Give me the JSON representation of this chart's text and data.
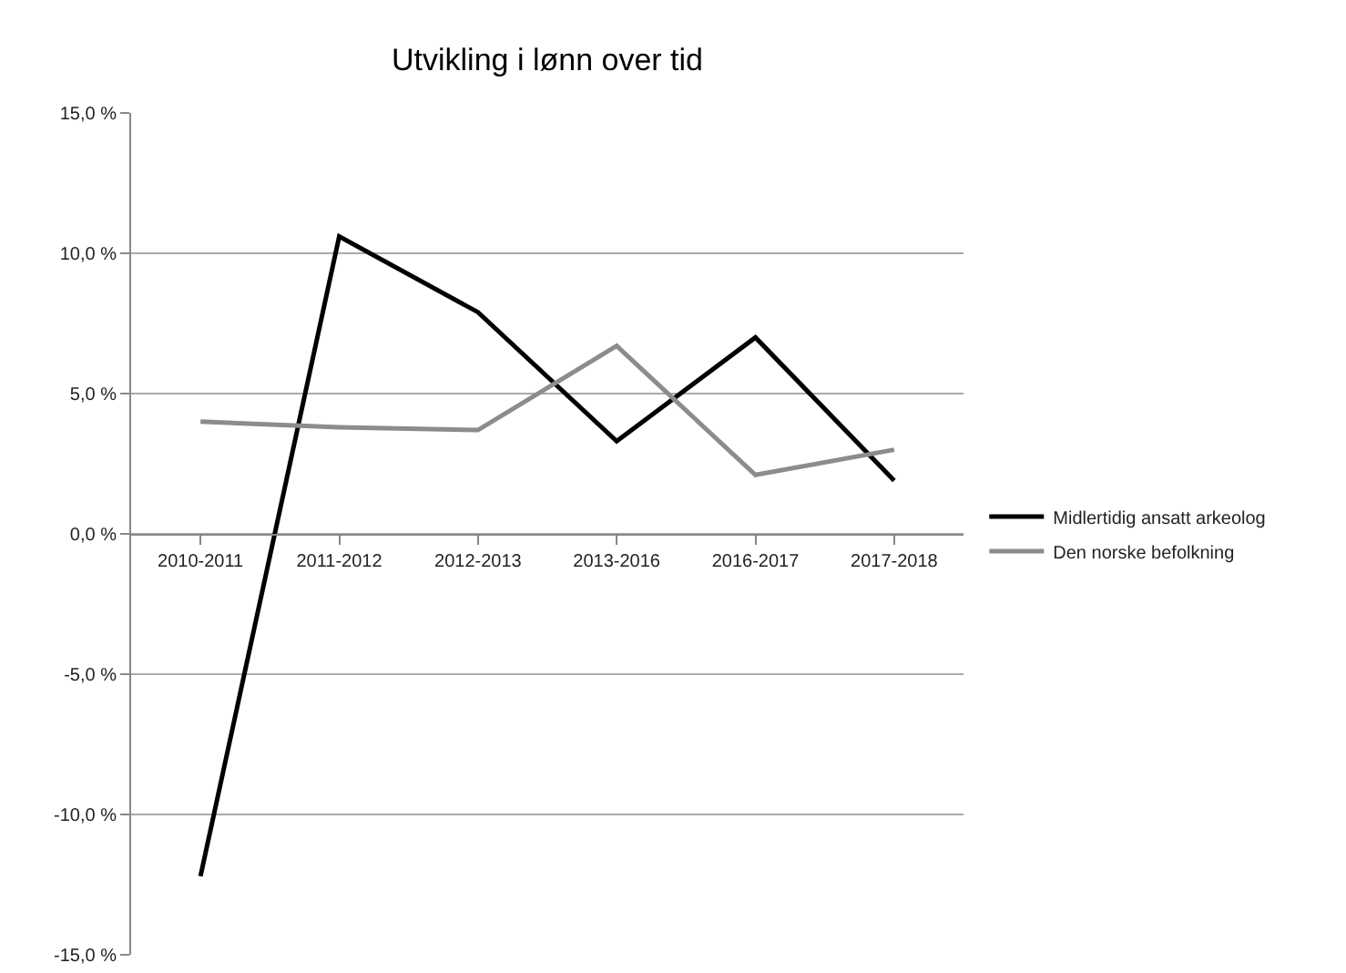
{
  "chart_data": {
    "type": "line",
    "title": "Utvikling i lønn over tid",
    "categories": [
      "2010-2011",
      "2011-2012",
      "2012-2013",
      "2013-2016",
      "2016-2017",
      "2017-2018"
    ],
    "series": [
      {
        "name": "Midlertidig ansatt arkeolog",
        "color": "#000000",
        "values": [
          -12.2,
          10.6,
          7.9,
          3.3,
          7.0,
          1.9
        ]
      },
      {
        "name": "Den norske befolkning",
        "color": "#8c8c8c",
        "values": [
          4.0,
          3.8,
          3.7,
          6.7,
          2.1,
          3.0
        ]
      }
    ],
    "ylim": [
      -15,
      15
    ],
    "yticks": [
      {
        "value": -15,
        "label": "-15,0 %"
      },
      {
        "value": -10,
        "label": "-10,0 %"
      },
      {
        "value": -5,
        "label": "-5,0 %"
      },
      {
        "value": 0,
        "label": "0,0 %"
      },
      {
        "value": 5,
        "label": "5,0 %"
      },
      {
        "value": 10,
        "label": "10,0 %"
      },
      {
        "value": 15,
        "label": "15,0 %"
      }
    ],
    "grid": "y",
    "legend": "right",
    "marker": "none",
    "line_style": "solid"
  }
}
